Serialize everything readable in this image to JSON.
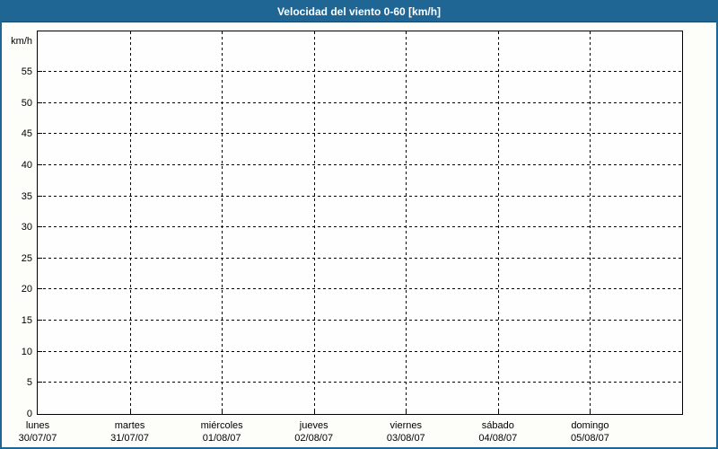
{
  "widget": {
    "bg_color": "#fdfdfa",
    "border_color": "#206694"
  },
  "title_bar": {
    "label": "Velocidad del viento 0-60 [km/h]",
    "bg_color": "#206694",
    "text_color": "#ffffff"
  },
  "chart_data": {
    "type": "line",
    "title": "Velocidad del viento 0-60 [km/h]",
    "ylabel": "km/h",
    "xlabel": "",
    "y_ticks": [
      0,
      5,
      10,
      15,
      20,
      25,
      30,
      35,
      40,
      45,
      50,
      55
    ],
    "ylim": [
      0,
      61.5
    ],
    "x_categories": [
      {
        "day": "lunes",
        "date": "30/07/07"
      },
      {
        "day": "martes",
        "date": "31/07/07"
      },
      {
        "day": "miércoles",
        "date": "01/08/07"
      },
      {
        "day": "jueves",
        "date": "02/08/07"
      },
      {
        "day": "viernes",
        "date": "03/08/07"
      },
      {
        "day": "sábado",
        "date": "04/08/07"
      },
      {
        "day": "domingo",
        "date": "05/08/07"
      }
    ],
    "series": [],
    "grid": "dashed",
    "legend": "none",
    "grid_color": "#000000",
    "axis_color": "#000000"
  }
}
